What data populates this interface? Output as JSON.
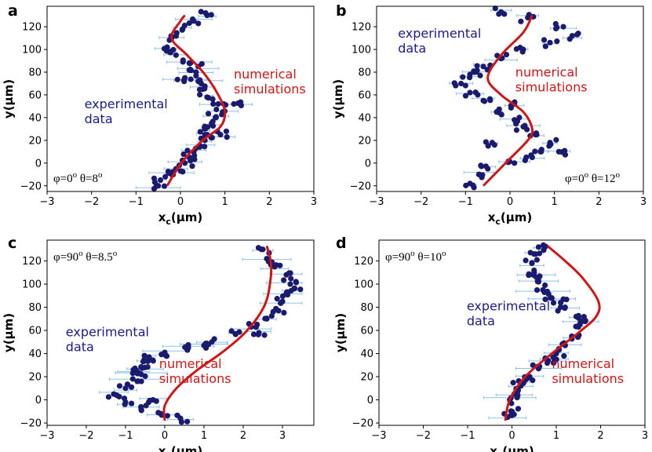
{
  "chart_data": [
    {
      "panel_label": "a",
      "type": "scatter",
      "xlabel": "x",
      "xlabel_sub": "c",
      "xlabel_unit": "(μm)",
      "ylabel": "y(μm)",
      "xlim": [
        -3,
        3
      ],
      "ylim": [
        -25,
        138
      ],
      "xticks": [
        -3,
        -2,
        -1,
        0,
        1,
        2,
        3
      ],
      "yticks": [
        -20,
        0,
        20,
        40,
        60,
        80,
        100,
        120
      ],
      "angles": {
        "phi": "φ=0",
        "theta": "θ=8",
        "degree": "o"
      },
      "angle_pos": "bottom-left",
      "experimental_label": [
        "experimental",
        "data"
      ],
      "numerical_label": [
        "numerical",
        "simulations"
      ],
      "simulation": [
        [
          -0.3,
          -20
        ],
        [
          0.02,
          0
        ],
        [
          0.5,
          20
        ],
        [
          0.9,
          32
        ],
        [
          1.0,
          45
        ],
        [
          0.85,
          60
        ],
        [
          0.55,
          78
        ],
        [
          0.15,
          95
        ],
        [
          -0.2,
          110
        ],
        [
          0.0,
          125
        ],
        [
          0.1,
          130
        ]
      ],
      "experimental": [
        [
          -0.5,
          -20
        ],
        [
          -0.45,
          -15
        ],
        [
          -0.2,
          -10
        ],
        [
          -0.1,
          -5
        ],
        [
          0.1,
          0
        ],
        [
          0.2,
          5
        ],
        [
          0.3,
          10
        ],
        [
          0.45,
          15
        ],
        [
          0.55,
          20
        ],
        [
          0.6,
          25
        ],
        [
          0.55,
          30
        ],
        [
          0.7,
          35
        ],
        [
          0.8,
          40
        ],
        [
          0.95,
          45
        ],
        [
          0.85,
          52
        ],
        [
          0.6,
          58
        ],
        [
          0.5,
          65
        ],
        [
          0.4,
          72
        ],
        [
          0.35,
          80
        ],
        [
          0.2,
          88
        ],
        [
          -0.1,
          95
        ],
        [
          -0.3,
          102
        ],
        [
          -0.2,
          110
        ],
        [
          0.05,
          118
        ],
        [
          0.3,
          125
        ],
        [
          0.6,
          130
        ],
        [
          0.4,
          85
        ],
        [
          0.1,
          75
        ],
        [
          1.2,
          52
        ],
        [
          0.9,
          25
        ]
      ],
      "x_error_bars": {
        "max_extent": 2.5,
        "color": "#8ec1e6"
      }
    },
    {
      "panel_label": "b",
      "type": "scatter",
      "xlabel": "x",
      "xlabel_sub": "c",
      "xlabel_unit": "(μm)",
      "ylabel": "y(μm)",
      "xlim": [
        -3,
        3
      ],
      "ylim": [
        -25,
        138
      ],
      "xticks": [
        -3,
        -2,
        -1,
        0,
        1,
        2,
        3
      ],
      "yticks": [
        -20,
        0,
        20,
        40,
        60,
        80,
        100,
        120
      ],
      "angles": {
        "phi": "φ=0",
        "theta": "θ=12",
        "degree": "o"
      },
      "angle_pos": "bottom-right",
      "experimental_label": [
        "experimental",
        "data"
      ],
      "numerical_label": [
        "numerical",
        "simulations"
      ],
      "simulation": [
        [
          -0.6,
          -20
        ],
        [
          -0.1,
          0
        ],
        [
          0.4,
          20
        ],
        [
          0.5,
          30
        ],
        [
          0.3,
          45
        ],
        [
          -0.2,
          60
        ],
        [
          -0.5,
          75
        ],
        [
          -0.2,
          95
        ],
        [
          0.3,
          115
        ],
        [
          0.5,
          130
        ]
      ],
      "experimental": [
        [
          -0.9,
          -18
        ],
        [
          -0.7,
          -10
        ],
        [
          -0.5,
          -5
        ],
        [
          0.1,
          0
        ],
        [
          0.5,
          5
        ],
        [
          0.7,
          10
        ],
        [
          0.9,
          18
        ],
        [
          0.6,
          25
        ],
        [
          0.3,
          32
        ],
        [
          0.1,
          38
        ],
        [
          -0.3,
          45
        ],
        [
          -0.6,
          55
        ],
        [
          -0.9,
          62
        ],
        [
          -1.1,
          70
        ],
        [
          -0.9,
          78
        ],
        [
          -0.6,
          85
        ],
        [
          -0.2,
          92
        ],
        [
          0.3,
          100
        ],
        [
          0.9,
          106
        ],
        [
          1.4,
          112
        ],
        [
          1.2,
          120
        ],
        [
          0.4,
          128
        ],
        [
          -0.2,
          133
        ],
        [
          -0.8,
          80
        ],
        [
          1.1,
          10
        ],
        [
          0.1,
          52
        ],
        [
          -0.4,
          18
        ]
      ],
      "x_error_bars": {
        "max_extent": 1.8,
        "color": "#8ec1e6"
      }
    },
    {
      "panel_label": "c",
      "type": "scatter",
      "xlabel": "x",
      "xlabel_sub": "c",
      "xlabel_unit": "(μm)",
      "ylabel": "y(μm)",
      "xlim": [
        -3,
        3.8
      ],
      "ylim": [
        -22,
        138
      ],
      "xticks": [
        -3,
        -2,
        -1,
        0,
        1,
        2,
        3
      ],
      "yticks": [
        -20,
        0,
        20,
        40,
        60,
        80,
        100,
        120
      ],
      "angles": {
        "phi": "φ=90",
        "theta": "θ=8.5",
        "degree": "o"
      },
      "angle_pos": "top-left",
      "experimental_label": [
        "experimental",
        "data"
      ],
      "numerical_label": [
        "numerical",
        "simulations"
      ],
      "simulation": [
        [
          0.0,
          -18
        ],
        [
          0.0,
          -5
        ],
        [
          0.3,
          10
        ],
        [
          0.8,
          25
        ],
        [
          1.5,
          42
        ],
        [
          2.1,
          60
        ],
        [
          2.55,
          82
        ],
        [
          2.7,
          105
        ],
        [
          2.7,
          120
        ],
        [
          2.6,
          133
        ]
      ],
      "experimental": [
        [
          0.4,
          -16
        ],
        [
          -0.1,
          -12
        ],
        [
          -0.6,
          -8
        ],
        [
          -1.0,
          -2
        ],
        [
          -1.3,
          5
        ],
        [
          -1.0,
          10
        ],
        [
          -0.7,
          16
        ],
        [
          -0.6,
          22
        ],
        [
          -0.5,
          28
        ],
        [
          -0.55,
          33
        ],
        [
          -0.4,
          37
        ],
        [
          0.0,
          41
        ],
        [
          0.6,
          45
        ],
        [
          1.2,
          50
        ],
        [
          1.8,
          57
        ],
        [
          2.2,
          63
        ],
        [
          2.6,
          70
        ],
        [
          2.9,
          77
        ],
        [
          3.0,
          85
        ],
        [
          3.1,
          92
        ],
        [
          3.2,
          100
        ],
        [
          3.1,
          108
        ],
        [
          2.8,
          115
        ],
        [
          2.6,
          122
        ],
        [
          2.5,
          130
        ],
        [
          -0.8,
          26
        ],
        [
          -0.3,
          0
        ],
        [
          2.4,
          58
        ],
        [
          3.3,
          96
        ],
        [
          1.0,
          47
        ]
      ],
      "x_error_bars": {
        "max_extent": 3.5,
        "color": "#8ec1e6"
      }
    },
    {
      "panel_label": "d",
      "type": "scatter",
      "xlabel": "x",
      "xlabel_sub": "c",
      "xlabel_unit": "(μm)",
      "ylabel": "y(μm)",
      "xlim": [
        -3,
        3
      ],
      "ylim": [
        -22,
        138
      ],
      "xticks": [
        -3,
        -2,
        -1,
        0,
        1,
        2,
        3
      ],
      "yticks": [
        -20,
        0,
        20,
        40,
        60,
        80,
        100,
        120
      ],
      "angles": {
        "phi": "φ=90",
        "theta": "θ=10",
        "degree": "o"
      },
      "angle_pos": "top-left",
      "experimental_label": [
        "experimental",
        "data"
      ],
      "numerical_label": [
        "numerical",
        "simulations"
      ],
      "simulation": [
        [
          -0.15,
          -18
        ],
        [
          -0.05,
          0
        ],
        [
          0.3,
          20
        ],
        [
          0.9,
          40
        ],
        [
          1.5,
          58
        ],
        [
          1.9,
          72
        ],
        [
          1.95,
          85
        ],
        [
          1.6,
          105
        ],
        [
          1.2,
          120
        ],
        [
          0.8,
          133
        ]
      ],
      "experimental": [
        [
          -0.1,
          -15
        ],
        [
          0.0,
          -10
        ],
        [
          -0.05,
          0
        ],
        [
          0.05,
          5
        ],
        [
          0.2,
          12
        ],
        [
          0.4,
          20
        ],
        [
          0.6,
          27
        ],
        [
          0.8,
          34
        ],
        [
          1.0,
          40
        ],
        [
          1.2,
          47
        ],
        [
          1.35,
          55
        ],
        [
          1.5,
          63
        ],
        [
          1.45,
          72
        ],
        [
          1.2,
          80
        ],
        [
          0.9,
          88
        ],
        [
          0.7,
          95
        ],
        [
          0.6,
          102
        ],
        [
          0.5,
          110
        ],
        [
          0.45,
          118
        ],
        [
          0.5,
          126
        ],
        [
          0.6,
          132
        ],
        [
          1.55,
          68
        ],
        [
          0.95,
          36
        ],
        [
          0.3,
          17
        ],
        [
          1.1,
          84
        ],
        [
          0.55,
          106
        ]
      ],
      "x_error_bars": {
        "max_extent": 3.0,
        "color": "#8ec1e6"
      }
    }
  ]
}
